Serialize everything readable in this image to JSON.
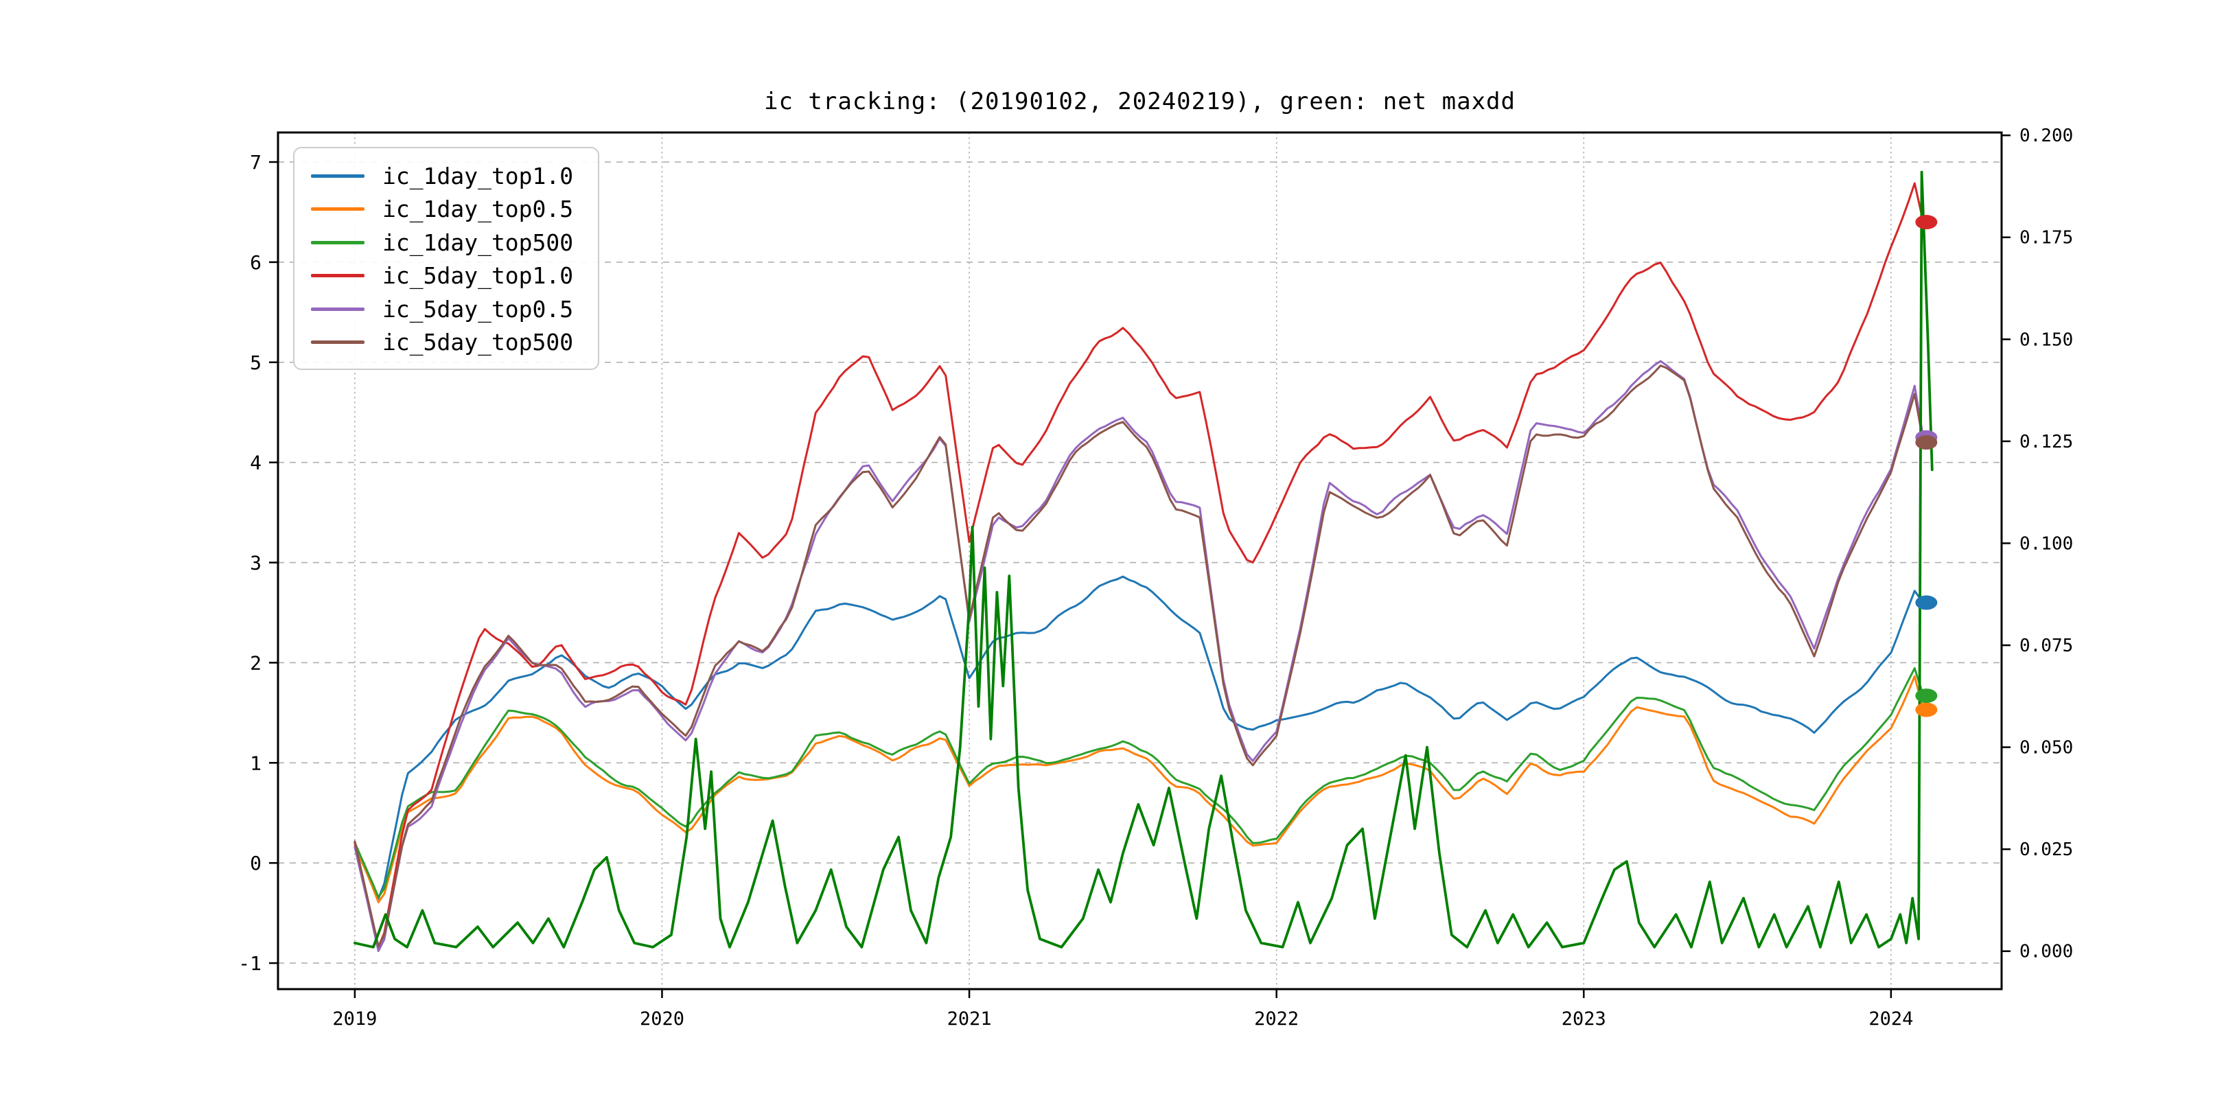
{
  "title": "ic tracking: (20190102, 20240219), green: net maxdd",
  "legend": {
    "items": [
      {
        "label": "ic_1day_top1.0",
        "color": "#1f77b4"
      },
      {
        "label": "ic_1day_top0.5",
        "color": "#ff7f0e"
      },
      {
        "label": "ic_1day_top500",
        "color": "#2ca02c"
      },
      {
        "label": "ic_5day_top1.0",
        "color": "#d62728"
      },
      {
        "label": "ic_5day_top0.5",
        "color": "#9467bd"
      },
      {
        "label": "ic_5day_top500",
        "color": "#8c564b"
      }
    ]
  },
  "axes": {
    "x": {
      "tick_values": [
        2019,
        2020,
        2021,
        2022,
        2023,
        2024
      ],
      "tick_labels": [
        "2019",
        "2020",
        "2021",
        "2022",
        "2023",
        "2024"
      ]
    },
    "left": {
      "tick_values": [
        7,
        6,
        5,
        4,
        3,
        2,
        1,
        0,
        -1
      ],
      "tick_labels": [
        "7",
        "6",
        "5",
        "4",
        "3",
        "2",
        "1",
        "0",
        "-1"
      ]
    },
    "right": {
      "tick_values": [
        0.2,
        0.175,
        0.15,
        0.125,
        0.1,
        0.075,
        0.05,
        0.025,
        0.0
      ],
      "tick_labels": [
        "0.200",
        "0.175",
        "0.150",
        "0.125",
        "0.100",
        "0.075",
        "0.050",
        "0.025",
        "0.000"
      ]
    }
  },
  "style": {
    "grid_color": "#b0b0b0",
    "axis_color": "#000000",
    "maxdd_color": "#008000",
    "line_width": 3,
    "maxdd_line_width": 3.8
  },
  "chart_data": {
    "type": "line",
    "title": "ic tracking: (20190102, 20240219), green: net maxdd",
    "x_range": [
      2018.75,
      2024.36
    ],
    "y_left_range": [
      -1.26,
      7.295
    ],
    "y_right_range": [
      -0.0093,
      0.2007
    ],
    "x_monthly_start": 2019.0,
    "x_monthly_step": 0.0833333,
    "grid": true,
    "legend_position": "upper-left",
    "series": [
      {
        "name": "ic_1day_top1.0",
        "color": "#1f77b4",
        "axis": "left",
        "noise": 0.05,
        "seed": 3,
        "values": [
          0.2,
          -0.4,
          0.9,
          1.1,
          1.45,
          1.55,
          1.8,
          1.9,
          2.1,
          1.85,
          1.75,
          1.9,
          1.75,
          1.5,
          1.85,
          2.0,
          1.95,
          2.1,
          2.5,
          2.6,
          2.5,
          2.4,
          2.5,
          2.7,
          1.85,
          2.25,
          2.3,
          2.35,
          2.55,
          2.75,
          2.85,
          2.75,
          2.5,
          2.3,
          1.5,
          1.3,
          1.45,
          1.5,
          1.55,
          1.6,
          1.75,
          1.8,
          1.65,
          1.45,
          1.6,
          1.4,
          1.6,
          1.55,
          1.65,
          1.9,
          2.05,
          1.9,
          1.85,
          1.7,
          1.6,
          1.5,
          1.45,
          1.3,
          1.55,
          1.8,
          2.1,
          2.75
        ],
        "end_x": 2024.105,
        "end_value": 2.6,
        "marker": true
      },
      {
        "name": "ic_1day_top0.5",
        "color": "#ff7f0e",
        "axis": "left",
        "noise": 0.045,
        "seed": 7,
        "values": [
          0.2,
          -0.45,
          0.5,
          0.65,
          0.7,
          1.1,
          1.45,
          1.45,
          1.3,
          1.0,
          0.8,
          0.7,
          0.5,
          0.3,
          0.65,
          0.85,
          0.8,
          0.85,
          1.2,
          1.25,
          1.15,
          1.05,
          1.15,
          1.25,
          0.75,
          0.95,
          1.0,
          0.95,
          1.0,
          1.1,
          1.15,
          1.05,
          0.8,
          0.7,
          0.45,
          0.15,
          0.2,
          0.55,
          0.75,
          0.8,
          0.85,
          1.0,
          0.9,
          0.6,
          0.85,
          0.7,
          1.0,
          0.85,
          0.9,
          1.2,
          1.55,
          1.5,
          1.45,
          0.85,
          0.7,
          0.6,
          0.45,
          0.4,
          0.8,
          1.1,
          1.35,
          1.9
        ],
        "end_x": 2024.105,
        "end_value": 1.53,
        "marker": true
      },
      {
        "name": "ic_1day_top500",
        "color": "#2ca02c",
        "axis": "left",
        "noise": 0.05,
        "seed": 11,
        "values": [
          0.2,
          -0.4,
          0.55,
          0.7,
          0.75,
          1.15,
          1.5,
          1.5,
          1.35,
          1.05,
          0.85,
          0.75,
          0.55,
          0.35,
          0.7,
          0.9,
          0.85,
          0.9,
          1.25,
          1.3,
          1.2,
          1.1,
          1.2,
          1.3,
          0.8,
          1.0,
          1.05,
          1.0,
          1.05,
          1.15,
          1.2,
          1.1,
          0.85,
          0.75,
          0.5,
          0.2,
          0.25,
          0.6,
          0.8,
          0.85,
          0.95,
          1.1,
          1.0,
          0.7,
          0.95,
          0.8,
          1.1,
          0.95,
          1.0,
          1.35,
          1.65,
          1.6,
          1.55,
          0.95,
          0.85,
          0.72,
          0.58,
          0.52,
          0.92,
          1.2,
          1.5,
          2.0
        ],
        "end_x": 2024.105,
        "end_value": 1.67,
        "marker": true
      },
      {
        "name": "ic_5day_top1.0",
        "color": "#d62728",
        "axis": "left",
        "noise": 0.07,
        "seed": 17,
        "values": [
          0.2,
          -0.9,
          0.5,
          0.75,
          1.6,
          2.35,
          2.2,
          1.95,
          2.2,
          1.85,
          1.9,
          2.0,
          1.7,
          1.55,
          2.6,
          3.3,
          3.0,
          3.35,
          4.5,
          4.9,
          5.1,
          4.5,
          4.7,
          5.0,
          3.2,
          4.2,
          3.95,
          4.35,
          4.85,
          5.2,
          5.35,
          5.05,
          4.65,
          4.7,
          3.4,
          3.0,
          3.5,
          4.0,
          4.3,
          4.15,
          4.2,
          4.4,
          4.65,
          4.2,
          4.35,
          4.15,
          4.85,
          4.95,
          5.15,
          5.5,
          5.9,
          6.0,
          5.6,
          4.9,
          4.65,
          4.5,
          4.4,
          4.5,
          4.85,
          5.45,
          6.15,
          6.88
        ],
        "end_x": 2024.105,
        "end_value": 6.4,
        "marker": true
      },
      {
        "name": "ic_5day_top0.5",
        "color": "#9467bd",
        "axis": "left",
        "noise": 0.06,
        "seed": 23,
        "values": [
          0.2,
          -0.95,
          0.35,
          0.55,
          1.3,
          1.9,
          2.25,
          1.95,
          1.9,
          1.55,
          1.6,
          1.75,
          1.45,
          1.2,
          1.9,
          2.2,
          2.1,
          2.5,
          3.3,
          3.7,
          4.0,
          3.6,
          3.9,
          4.3,
          2.4,
          3.45,
          3.35,
          3.65,
          4.1,
          4.35,
          4.45,
          4.2,
          3.6,
          3.55,
          1.7,
          1.0,
          1.3,
          2.4,
          3.8,
          3.6,
          3.5,
          3.7,
          3.9,
          3.3,
          3.5,
          3.3,
          4.4,
          4.35,
          4.3,
          4.55,
          4.8,
          5.0,
          4.85,
          3.8,
          3.5,
          3.0,
          2.7,
          2.15,
          2.9,
          3.45,
          3.95,
          4.85
        ],
        "end_x": 2024.105,
        "end_value": 4.25,
        "marker": true
      },
      {
        "name": "ic_5day_top500",
        "color": "#8c564b",
        "axis": "left",
        "noise": 0.06,
        "seed": 29,
        "values": [
          0.25,
          -0.9,
          0.4,
          0.6,
          1.35,
          1.95,
          2.3,
          2.0,
          1.95,
          1.6,
          1.65,
          1.8,
          1.5,
          1.25,
          1.95,
          2.2,
          2.1,
          2.5,
          3.35,
          3.7,
          3.95,
          3.55,
          3.85,
          4.3,
          2.45,
          3.5,
          3.3,
          3.6,
          4.05,
          4.3,
          4.4,
          4.15,
          3.55,
          3.45,
          1.65,
          0.95,
          1.25,
          2.35,
          3.7,
          3.55,
          3.45,
          3.6,
          3.85,
          3.25,
          3.4,
          3.2,
          4.3,
          4.25,
          4.25,
          4.5,
          4.75,
          4.95,
          4.8,
          3.75,
          3.45,
          2.95,
          2.65,
          2.1,
          2.85,
          3.4,
          3.9,
          4.8
        ],
        "end_x": 2024.105,
        "end_value": 4.2,
        "marker": true
      },
      {
        "name": "net_maxdd",
        "color": "#008000",
        "axis": "right",
        "marker": false,
        "points": [
          [
            2019.0,
            0.002
          ],
          [
            2019.06,
            0.001
          ],
          [
            2019.1,
            0.009
          ],
          [
            2019.13,
            0.003
          ],
          [
            2019.17,
            0.001
          ],
          [
            2019.22,
            0.01
          ],
          [
            2019.26,
            0.002
          ],
          [
            2019.33,
            0.001
          ],
          [
            2019.4,
            0.006
          ],
          [
            2019.45,
            0.001
          ],
          [
            2019.53,
            0.007
          ],
          [
            2019.58,
            0.002
          ],
          [
            2019.63,
            0.008
          ],
          [
            2019.68,
            0.001
          ],
          [
            2019.74,
            0.012
          ],
          [
            2019.78,
            0.02
          ],
          [
            2019.82,
            0.023
          ],
          [
            2019.86,
            0.01
          ],
          [
            2019.91,
            0.002
          ],
          [
            2019.97,
            0.001
          ],
          [
            2020.03,
            0.004
          ],
          [
            2020.08,
            0.028
          ],
          [
            2020.11,
            0.052
          ],
          [
            2020.14,
            0.03
          ],
          [
            2020.16,
            0.044
          ],
          [
            2020.19,
            0.008
          ],
          [
            2020.22,
            0.001
          ],
          [
            2020.28,
            0.012
          ],
          [
            2020.32,
            0.022
          ],
          [
            2020.36,
            0.032
          ],
          [
            2020.4,
            0.016
          ],
          [
            2020.44,
            0.002
          ],
          [
            2020.5,
            0.01
          ],
          [
            2020.55,
            0.02
          ],
          [
            2020.6,
            0.006
          ],
          [
            2020.65,
            0.001
          ],
          [
            2020.72,
            0.02
          ],
          [
            2020.77,
            0.028
          ],
          [
            2020.81,
            0.01
          ],
          [
            2020.86,
            0.002
          ],
          [
            2020.9,
            0.018
          ],
          [
            2020.94,
            0.028
          ],
          [
            2020.97,
            0.05
          ],
          [
            2021.0,
            0.085
          ],
          [
            2021.01,
            0.104
          ],
          [
            2021.03,
            0.06
          ],
          [
            2021.05,
            0.094
          ],
          [
            2021.07,
            0.052
          ],
          [
            2021.09,
            0.088
          ],
          [
            2021.11,
            0.065
          ],
          [
            2021.13,
            0.092
          ],
          [
            2021.16,
            0.04
          ],
          [
            2021.19,
            0.015
          ],
          [
            2021.23,
            0.003
          ],
          [
            2021.3,
            0.001
          ],
          [
            2021.37,
            0.008
          ],
          [
            2021.42,
            0.02
          ],
          [
            2021.46,
            0.012
          ],
          [
            2021.5,
            0.024
          ],
          [
            2021.55,
            0.036
          ],
          [
            2021.6,
            0.026
          ],
          [
            2021.65,
            0.04
          ],
          [
            2021.7,
            0.022
          ],
          [
            2021.74,
            0.008
          ],
          [
            2021.78,
            0.03
          ],
          [
            2021.82,
            0.043
          ],
          [
            2021.86,
            0.026
          ],
          [
            2021.9,
            0.01
          ],
          [
            2021.95,
            0.002
          ],
          [
            2022.02,
            0.001
          ],
          [
            2022.07,
            0.012
          ],
          [
            2022.11,
            0.002
          ],
          [
            2022.18,
            0.013
          ],
          [
            2022.23,
            0.026
          ],
          [
            2022.28,
            0.03
          ],
          [
            2022.32,
            0.008
          ],
          [
            2022.37,
            0.028
          ],
          [
            2022.42,
            0.048
          ],
          [
            2022.45,
            0.03
          ],
          [
            2022.49,
            0.05
          ],
          [
            2022.53,
            0.024
          ],
          [
            2022.57,
            0.004
          ],
          [
            2022.62,
            0.001
          ],
          [
            2022.68,
            0.01
          ],
          [
            2022.72,
            0.002
          ],
          [
            2022.77,
            0.009
          ],
          [
            2022.82,
            0.001
          ],
          [
            2022.88,
            0.007
          ],
          [
            2022.93,
            0.001
          ],
          [
            2023.0,
            0.002
          ],
          [
            2023.06,
            0.013
          ],
          [
            2023.1,
            0.02
          ],
          [
            2023.14,
            0.022
          ],
          [
            2023.18,
            0.007
          ],
          [
            2023.23,
            0.001
          ],
          [
            2023.3,
            0.009
          ],
          [
            2023.35,
            0.001
          ],
          [
            2023.41,
            0.017
          ],
          [
            2023.45,
            0.002
          ],
          [
            2023.52,
            0.013
          ],
          [
            2023.57,
            0.001
          ],
          [
            2023.62,
            0.009
          ],
          [
            2023.66,
            0.001
          ],
          [
            2023.73,
            0.011
          ],
          [
            2023.77,
            0.001
          ],
          [
            2023.83,
            0.017
          ],
          [
            2023.87,
            0.002
          ],
          [
            2023.92,
            0.009
          ],
          [
            2023.96,
            0.001
          ],
          [
            2024.0,
            0.003
          ],
          [
            2024.03,
            0.009
          ],
          [
            2024.05,
            0.002
          ],
          [
            2024.07,
            0.013
          ],
          [
            2024.09,
            0.003
          ],
          [
            2024.1,
            0.191
          ],
          [
            2024.12,
            0.15
          ],
          [
            2024.134,
            0.118
          ]
        ]
      }
    ]
  }
}
